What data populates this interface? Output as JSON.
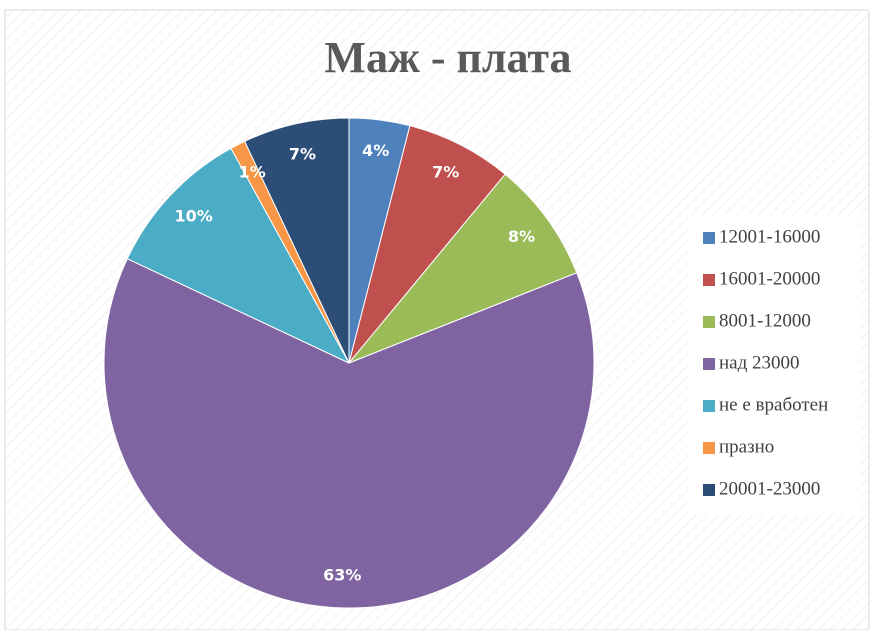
{
  "chart_data": {
    "type": "pie",
    "title": "Маж - плата",
    "categories": [
      "12001-16000",
      "16001-20000",
      "8001-12000",
      "над 23000",
      "не е вработен",
      "празно",
      "20001-23000"
    ],
    "values": [
      4,
      7,
      8,
      63,
      10,
      1,
      7
    ],
    "value_labels": [
      "4%",
      "7%",
      "8%",
      "63%",
      "10%",
      "1%",
      "7%"
    ],
    "colors": [
      "#4f81bd",
      "#c0504d",
      "#9bbb59",
      "#8064a2",
      "#4bacc6",
      "#f79646",
      "#2c4d75"
    ],
    "legend": "right"
  }
}
